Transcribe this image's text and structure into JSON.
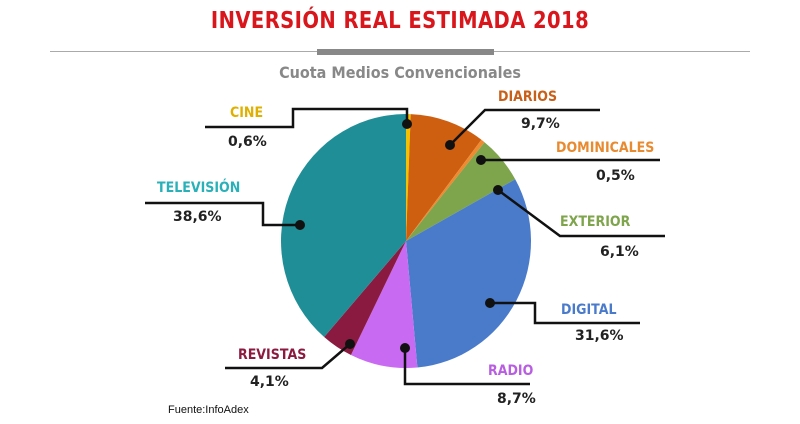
{
  "title": "INVERSIÓN REAL ESTIMADA 2018",
  "subtitle": "Cuota Medios Convencionales",
  "source": "Fuente:InfoAdex",
  "chart_data": {
    "type": "pie",
    "title": "INVERSIÓN REAL ESTIMADA 2018",
    "subtitle": "Cuota Medios Convencionales",
    "slices": [
      {
        "label": "CINE",
        "value": 0.6,
        "display": "0,6%",
        "color": "#f2c200",
        "label_color": "#e0b000"
      },
      {
        "label": "DIARIOS",
        "value": 9.7,
        "display": "9,7%",
        "color": "#cf5f10",
        "label_color": "#c8601a"
      },
      {
        "label": "DOMINICALES",
        "value": 0.5,
        "display": "0,5%",
        "color": "#f08a30",
        "label_color": "#e88a30"
      },
      {
        "label": "EXTERIOR",
        "value": 6.1,
        "display": "6,1%",
        "color": "#7ea44c",
        "label_color": "#7ea44c"
      },
      {
        "label": "DIGITAL",
        "value": 31.6,
        "display": "31,6%",
        "color": "#4a7bcb",
        "label_color": "#4a7bcb"
      },
      {
        "label": "RADIO",
        "value": 8.7,
        "display": "8,7%",
        "color": "#c96af2",
        "label_color": "#b85ee0"
      },
      {
        "label": "REVISTAS",
        "value": 4.1,
        "display": "4,1%",
        "color": "#8b1a40",
        "label_color": "#8b1a40"
      },
      {
        "label": "TELEVISIÓN",
        "value": 38.6,
        "display": "38,6%",
        "color": "#1f8e96",
        "label_color": "#2ab0b8"
      }
    ]
  }
}
